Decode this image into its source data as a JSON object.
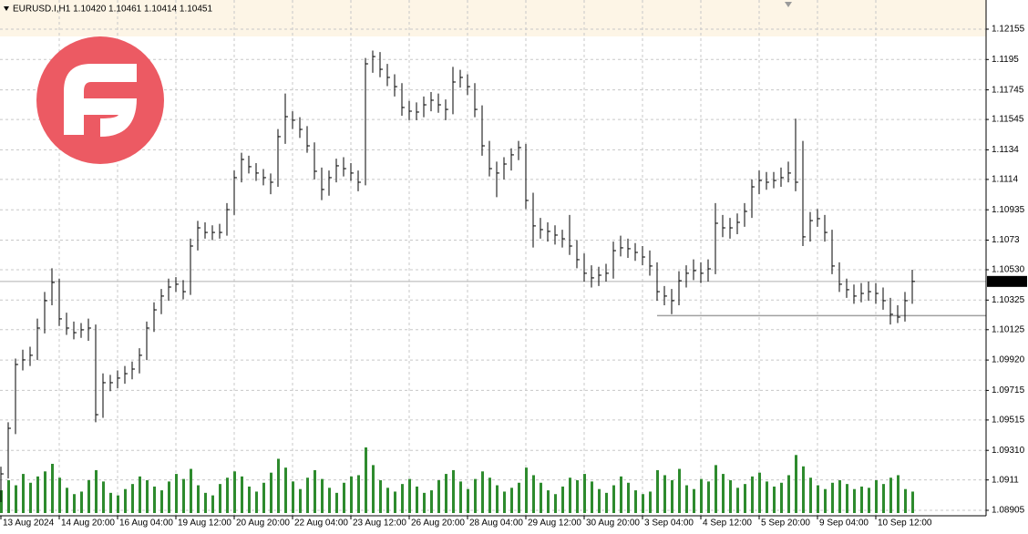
{
  "chart_data": {
    "type": "ohlc",
    "title": "EURUSD.I,H1 1.10420 1.10461 1.10414 1.10451",
    "x": [
      0,
      4,
      8,
      12,
      16,
      20,
      24,
      28,
      32,
      36,
      40,
      44,
      48,
      52,
      56,
      60,
      64,
      68,
      72,
      76,
      80,
      84,
      88,
      92,
      96,
      100,
      104,
      108,
      112,
      116,
      120,
      124,
      128,
      132,
      136,
      140,
      144,
      148,
      152,
      156,
      160,
      164,
      168,
      172,
      176,
      180,
      184,
      188,
      192,
      196,
      200,
      204,
      208,
      212,
      216,
      220,
      224,
      228,
      232,
      236,
      240,
      244,
      248,
      252,
      256,
      260,
      264,
      268,
      272,
      276,
      280,
      284,
      288,
      292,
      296,
      300,
      304,
      308,
      312,
      316,
      320,
      324,
      328,
      332,
      336,
      340,
      344,
      348,
      352,
      356,
      360,
      364,
      368,
      372,
      376,
      380,
      384,
      388,
      392,
      396,
      400,
      404,
      408,
      412,
      416,
      420,
      424,
      428,
      432,
      436,
      440,
      444,
      448,
      452,
      456,
      460,
      464,
      468,
      472,
      476,
      480,
      484,
      488,
      492,
      496,
      500
    ],
    "high": [
      1.092,
      1.095,
      1.0993,
      1.0999,
      1.1001,
      1.102,
      1.1038,
      1.1054,
      1.1047,
      1.1024,
      1.1018,
      1.1017,
      1.102,
      1.1016,
      1.0983,
      1.0982,
      1.0985,
      1.0988,
      1.0991,
      1.1,
      1.1018,
      1.1031,
      1.104,
      1.1047,
      1.1048,
      1.1046,
      1.1074,
      1.1086,
      1.1085,
      1.1083,
      1.1084,
      1.1098,
      1.112,
      1.1132,
      1.113,
      1.1125,
      1.1121,
      1.1118,
      1.1148,
      1.1172,
      1.116,
      1.1156,
      1.115,
      1.1139,
      1.1122,
      1.112,
      1.1128,
      1.1129,
      1.1125,
      1.112,
      1.1196,
      1.1201,
      1.12,
      1.1192,
      1.1185,
      1.1179,
      1.1167,
      1.1166,
      1.117,
      1.1173,
      1.1172,
      1.1168,
      1.119,
      1.1188,
      1.1185,
      1.1179,
      1.1164,
      1.114,
      1.1126,
      1.1129,
      1.1135,
      1.114,
      1.1138,
      1.1105,
      1.1088,
      1.1085,
      1.1083,
      1.108,
      1.109,
      1.1073,
      1.1064,
      1.1056,
      1.1055,
      1.1057,
      1.1072,
      1.1076,
      1.1074,
      1.1071,
      1.1069,
      1.1066,
      1.1058,
      1.1042,
      1.104,
      1.1052,
      1.1056,
      1.106,
      1.1058,
      1.106,
      1.1098,
      1.109,
      1.1088,
      1.1091,
      1.1098,
      1.1114,
      1.112,
      1.1119,
      1.1119,
      1.1122,
      1.1126,
      1.1155,
      1.114,
      1.1092,
      1.1094,
      1.109,
      1.108,
      1.1058,
      1.1047,
      1.1043,
      1.1044,
      1.1045,
      1.1044,
      1.1041,
      1.1034,
      1.1029,
      1.1038,
      1.1053
    ],
    "low": [
      1.0896,
      1.0912,
      1.0942,
      1.0985,
      1.0988,
      1.0992,
      1.101,
      1.1029,
      1.1015,
      1.1009,
      1.1006,
      1.1007,
      1.1005,
      1.095,
      1.0953,
      1.0971,
      1.0973,
      1.0976,
      1.0979,
      1.0983,
      1.0992,
      1.1011,
      1.1023,
      1.1032,
      1.1038,
      1.1033,
      1.1036,
      1.1066,
      1.1074,
      1.1073,
      1.1074,
      1.1076,
      1.109,
      1.1112,
      1.1118,
      1.1113,
      1.111,
      1.1104,
      1.1109,
      1.1138,
      1.1148,
      1.1142,
      1.1132,
      1.1114,
      1.11,
      1.1103,
      1.1112,
      1.1116,
      1.1113,
      1.1106,
      1.111,
      1.1186,
      1.1183,
      1.1177,
      1.117,
      1.1157,
      1.1154,
      1.1154,
      1.1156,
      1.116,
      1.1159,
      1.1154,
      1.1158,
      1.1176,
      1.1171,
      1.1156,
      1.113,
      1.1116,
      1.1102,
      1.1114,
      1.112,
      1.1127,
      1.1094,
      1.1068,
      1.1074,
      1.1072,
      1.107,
      1.1068,
      1.1063,
      1.1054,
      1.1045,
      1.1041,
      1.1042,
      1.1045,
      1.1047,
      1.1062,
      1.1061,
      1.1059,
      1.1056,
      1.1049,
      1.1032,
      1.1029,
      1.1023,
      1.1029,
      1.1041,
      1.1046,
      1.1044,
      1.1045,
      1.105,
      1.1075,
      1.1074,
      1.1077,
      1.1082,
      1.1088,
      1.1104,
      1.1107,
      1.1108,
      1.1109,
      1.1112,
      1.1106,
      1.1069,
      1.1072,
      1.1082,
      1.1072,
      1.105,
      1.1038,
      1.1034,
      1.103,
      1.1031,
      1.1032,
      1.103,
      1.1026,
      1.1016,
      1.1017,
      1.1018,
      1.103
    ],
    "close": [
      1.09151,
      1.09459,
      1.0989,
      1.09921,
      1.09952,
      1.10136,
      1.10321,
      1.10444,
      1.10198,
      1.10136,
      1.10105,
      1.10124,
      1.10136,
      1.09551,
      1.09767,
      1.09767,
      1.09798,
      1.09828,
      1.09859,
      1.09952,
      1.10136,
      1.10259,
      1.10352,
      1.10413,
      1.10432,
      1.10382,
      1.1069,
      1.10813,
      1.10782,
      1.10782,
      1.10782,
      1.10936,
      1.11152,
      1.11275,
      1.11226,
      1.11183,
      1.11152,
      1.11121,
      1.11429,
      1.11564,
      1.1154,
      1.11478,
      1.11367,
      1.11195,
      1.11072,
      1.11152,
      1.11232,
      1.11213,
      1.11183,
      1.11121,
      1.11921,
      1.1197,
      1.11884,
      1.11829,
      1.11767,
      1.11626,
      1.11601,
      1.11595,
      1.11644,
      1.11675,
      1.11644,
      1.11613,
      1.11798,
      1.11829,
      1.11767,
      1.11613,
      1.11367,
      1.11213,
      1.11183,
      1.11244,
      1.11306,
      1.11355,
      1.10998,
      1.10826,
      1.10801,
      1.10789,
      1.10764,
      1.10739,
      1.1069,
      1.10598,
      1.10506,
      1.10475,
      1.10493,
      1.10506,
      1.10659,
      1.10678,
      1.10672,
      1.10647,
      1.10616,
      1.10555,
      1.10382,
      1.10352,
      1.10321,
      1.10456,
      1.10506,
      1.10524,
      1.10506,
      1.10536,
      1.10844,
      1.10813,
      1.10813,
      1.1085,
      1.10924,
      1.1109,
      1.11133,
      1.11121,
      1.11133,
      1.11152,
      1.11183,
      1.11121,
      1.10752,
      1.10862,
      1.10875,
      1.10782,
      1.10555,
      1.10432,
      1.10395,
      1.10352,
      1.1037,
      1.10382,
      1.1037,
      1.10321,
      1.10229,
      1.1021,
      1.10321,
      1.10451
    ],
    "volume": [
      1800,
      2600,
      2200,
      3100,
      2400,
      2900,
      3300,
      3900,
      2800,
      2000,
      1500,
      1700,
      2600,
      3400,
      2500,
      1600,
      1400,
      1900,
      2300,
      2900,
      2600,
      2100,
      1800,
      2500,
      3100,
      2700,
      3500,
      2200,
      1600,
      1400,
      2300,
      2800,
      3300,
      2900,
      2100,
      1700,
      2400,
      3200,
      4300,
      3600,
      2500,
      1900,
      2800,
      3400,
      2700,
      2000,
      1600,
      2400,
      2900,
      3000,
      5200,
      3800,
      2600,
      2000,
      1700,
      2300,
      2700,
      2100,
      1600,
      1800,
      2600,
      3100,
      3400,
      2500,
      1900,
      2700,
      3300,
      2800,
      2200,
      1700,
      2000,
      2400,
      3600,
      3000,
      2400,
      1800,
      1500,
      2100,
      2800,
      2600,
      3100,
      2500,
      1900,
      1600,
      2200,
      2900,
      2400,
      1800,
      1500,
      1700,
      3400,
      3000,
      2600,
      3500,
      2200,
      1900,
      2700,
      2500,
      3800,
      3100,
      2600,
      2000,
      2300,
      2900,
      3200,
      2500,
      2100,
      2400,
      3000,
      4600,
      3700,
      2800,
      2200,
      1900,
      2400,
      2600,
      2300,
      1900,
      2100,
      2000,
      2600,
      2300,
      2800,
      3000,
      1900,
      1700
    ],
    "color": "#000000",
    "volume_color": "#2e8b2e",
    "xlim": [
      0,
      541
    ],
    "xticks": [
      {
        "value": 0,
        "label": "13 Aug 2024"
      },
      {
        "value": 32,
        "label": "14 Aug 20:00"
      },
      {
        "value": 64,
        "label": "16 Aug 04:00"
      },
      {
        "value": 96,
        "label": "19 Aug 12:00"
      },
      {
        "value": 128,
        "label": "20 Aug 20:00"
      },
      {
        "value": 160,
        "label": "22 Aug 04:00"
      },
      {
        "value": 192,
        "label": "23 Aug 12:00"
      },
      {
        "value": 224,
        "label": "26 Aug 20:00"
      },
      {
        "value": 256,
        "label": "28 Aug 04:00"
      },
      {
        "value": 288,
        "label": "29 Aug 12:00"
      },
      {
        "value": 320,
        "label": "30 Aug 20:00"
      },
      {
        "value": 352,
        "label": "3 Sep 04:00"
      },
      {
        "value": 384,
        "label": "4 Sep 12:00"
      },
      {
        "value": 416,
        "label": "5 Sep 20:00"
      },
      {
        "value": 448,
        "label": "9 Sep 04:00"
      },
      {
        "value": 480,
        "label": "10 Sep 12:00"
      }
    ],
    "ylim": [
      1.08868,
      1.12352
    ],
    "yticks": [
      1.12155,
      1.1195,
      1.11745,
      1.11545,
      1.1134,
      1.1114,
      1.10935,
      1.1073,
      {
        "value": 1.1053,
        "label": "1.10530"
      },
      1.10325,
      1.10125,
      {
        "value": 1.0992,
        "label": "1.09920"
      },
      1.09715,
      1.09515,
      {
        "value": 1.0931,
        "label": "1.09310"
      },
      1.0911,
      1.08905
    ],
    "grid": true,
    "current_price": 1.10451,
    "support_line": {
      "price": 1.1022,
      "start": 360
    }
  }
}
